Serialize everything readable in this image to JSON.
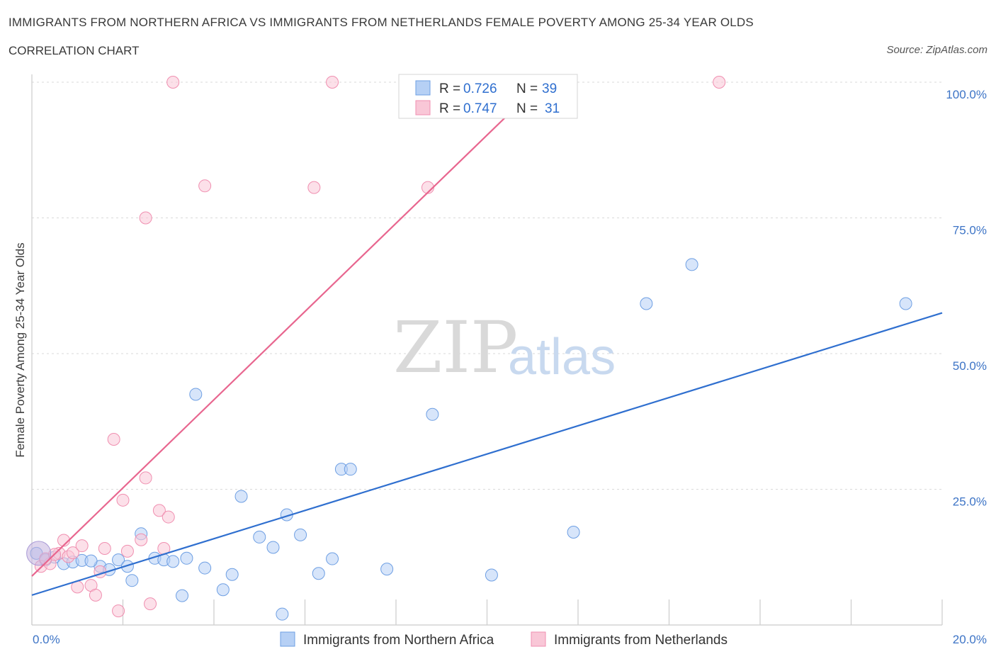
{
  "header": {
    "title": "IMMIGRANTS FROM NORTHERN AFRICA VS IMMIGRANTS FROM NETHERLANDS FEMALE POVERTY AMONG 25-34 YEAR OLDS",
    "subtitle": "CORRELATION CHART",
    "source": "Source: ZipAtlas.com"
  },
  "watermark": {
    "zip": "ZIP",
    "atlas": "atlas"
  },
  "legend": {
    "r_label": "R =",
    "n_label": "N =",
    "series": [
      {
        "r": "0.726",
        "n": "39"
      },
      {
        "r": "0.747",
        "n": "31"
      }
    ]
  },
  "chart_data": {
    "type": "scatter",
    "title": "IMMIGRANTS FROM NORTHERN AFRICA VS IMMIGRANTS FROM NETHERLANDS FEMALE POVERTY AMONG 25-34 YEAR OLDS",
    "subtitle": "CORRELATION CHART",
    "xlabel": "",
    "ylabel": "Female Poverty Among 25-34 Year Olds",
    "xlim": [
      0,
      20
    ],
    "ylim": [
      0,
      100
    ],
    "x_tick_labels": [
      "0.0%",
      "20.0%"
    ],
    "y_tick_labels": [
      "100.0%",
      "75.0%",
      "50.0%",
      "25.0%"
    ],
    "y_ticks": [
      100,
      75,
      50,
      25
    ],
    "grid": true,
    "legend_position": "top-center",
    "series": [
      {
        "name": "Immigrants from Northern Africa",
        "color": "#6e9fe3",
        "line_color": "#2f6fcf",
        "r": 0.726,
        "n": 39,
        "trend": {
          "x0": 0,
          "y0": 5.5,
          "x1": 20,
          "y1": 57.5
        },
        "points": [
          [
            0.1,
            13.2
          ],
          [
            0.5,
            12.5
          ],
          [
            0.7,
            11.3
          ],
          [
            0.9,
            11.6
          ],
          [
            1.1,
            11.9
          ],
          [
            1.5,
            10.8
          ],
          [
            1.7,
            10.2
          ],
          [
            1.9,
            12.0
          ],
          [
            2.1,
            10.8
          ],
          [
            2.2,
            8.2
          ],
          [
            2.4,
            16.8
          ],
          [
            2.7,
            12.3
          ],
          [
            2.9,
            12.0
          ],
          [
            3.1,
            11.7
          ],
          [
            3.4,
            12.3
          ],
          [
            3.3,
            5.4
          ],
          [
            3.6,
            42.5
          ],
          [
            3.8,
            10.5
          ],
          [
            4.2,
            6.5
          ],
          [
            4.4,
            9.3
          ],
          [
            4.6,
            23.7
          ],
          [
            5.0,
            16.2
          ],
          [
            5.3,
            14.3
          ],
          [
            5.5,
            2.0
          ],
          [
            5.6,
            20.3
          ],
          [
            5.9,
            16.6
          ],
          [
            6.3,
            9.5
          ],
          [
            6.6,
            12.2
          ],
          [
            6.8,
            28.7
          ],
          [
            7.0,
            28.7
          ],
          [
            7.8,
            10.3
          ],
          [
            8.8,
            38.8
          ],
          [
            10.1,
            9.2
          ],
          [
            11.9,
            17.1
          ],
          [
            13.5,
            59.2
          ],
          [
            14.5,
            66.4
          ],
          [
            19.2,
            59.2
          ],
          [
            0.3,
            12.0
          ],
          [
            1.3,
            11.8
          ]
        ]
      },
      {
        "name": "Immigrants from Netherlands",
        "color": "#f08fb0",
        "line_color": "#e8668f",
        "r": 0.747,
        "n": 31,
        "trend": {
          "x0": 0,
          "y0": 9.0,
          "x1": 11.2,
          "y1": 100
        },
        "points": [
          [
            0.2,
            10.8
          ],
          [
            0.4,
            11.3
          ],
          [
            0.6,
            13.2
          ],
          [
            0.7,
            15.6
          ],
          [
            0.8,
            12.6
          ],
          [
            0.9,
            13.3
          ],
          [
            1.0,
            7.0
          ],
          [
            1.1,
            14.6
          ],
          [
            1.3,
            7.3
          ],
          [
            1.4,
            5.5
          ],
          [
            1.5,
            9.8
          ],
          [
            1.6,
            14.1
          ],
          [
            1.8,
            34.2
          ],
          [
            1.9,
            2.6
          ],
          [
            2.0,
            23.0
          ],
          [
            2.1,
            13.6
          ],
          [
            2.4,
            15.7
          ],
          [
            2.5,
            27.1
          ],
          [
            2.6,
            3.9
          ],
          [
            2.8,
            21.1
          ],
          [
            2.9,
            14.1
          ],
          [
            3.0,
            19.9
          ],
          [
            2.5,
            75.0
          ],
          [
            3.1,
            100
          ],
          [
            3.8,
            80.9
          ],
          [
            6.2,
            80.6
          ],
          [
            6.6,
            100
          ],
          [
            8.7,
            80.6
          ],
          [
            15.1,
            100
          ],
          [
            0.3,
            12.2
          ],
          [
            0.5,
            13.0
          ]
        ]
      }
    ]
  }
}
